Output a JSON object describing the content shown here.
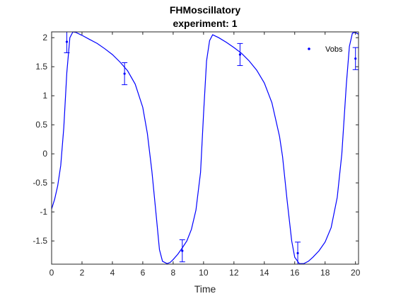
{
  "chart_data": {
    "type": "line",
    "title": "FHMoscillatory",
    "subtitle": "experiment: 1",
    "xlabel": "Time",
    "ylabel": "",
    "xlim": [
      0,
      20.2
    ],
    "ylim": [
      -1.9,
      2.1
    ],
    "xticks": [
      0,
      2,
      4,
      6,
      8,
      10,
      12,
      14,
      16,
      18,
      20
    ],
    "yticks": [
      -1.5,
      -1,
      -0.5,
      0,
      0.5,
      1,
      1.5,
      2
    ],
    "xtick_labels": [
      "0",
      "2",
      "4",
      "6",
      "8",
      "10",
      "12",
      "14",
      "16",
      "18",
      "20"
    ],
    "ytick_labels": [
      "-1.5",
      "-1",
      "-0.5",
      "0",
      "0.5",
      "1",
      "1.5",
      "2"
    ],
    "grid": false,
    "legend": {
      "position": "top-right",
      "entries": [
        "Vobs"
      ]
    },
    "series": [
      {
        "name": "",
        "kind": "line",
        "color": "#0000ff",
        "x": [
          0,
          0.2,
          0.4,
          0.6,
          0.8,
          1.0,
          1.2,
          1.4,
          1.6,
          2.0,
          2.5,
          3.0,
          3.5,
          4.0,
          4.5,
          5.0,
          5.5,
          6.0,
          6.3,
          6.6,
          6.9,
          7.1,
          7.3,
          7.6,
          7.8,
          8.0,
          8.3,
          8.6,
          8.9,
          9.2,
          9.5,
          9.8,
          10.0,
          10.2,
          10.4,
          10.6,
          11.0,
          11.5,
          12.0,
          12.5,
          13.0,
          13.5,
          14.0,
          14.5,
          15.0,
          15.2,
          15.5,
          15.8,
          16.0,
          16.3,
          16.6,
          16.9,
          17.2,
          17.6,
          18.0,
          18.4,
          18.8,
          19.1,
          19.4,
          19.6,
          19.8,
          20.0,
          20.2
        ],
        "y": [
          -0.95,
          -0.78,
          -0.55,
          -0.2,
          0.45,
          1.4,
          2.0,
          2.1,
          2.09,
          2.04,
          1.97,
          1.9,
          1.81,
          1.71,
          1.58,
          1.43,
          1.2,
          0.8,
          0.35,
          -0.3,
          -1.1,
          -1.65,
          -1.85,
          -1.89,
          -1.87,
          -1.82,
          -1.73,
          -1.62,
          -1.5,
          -1.3,
          -0.97,
          -0.32,
          0.7,
          1.6,
          1.95,
          2.05,
          2.0,
          1.92,
          1.83,
          1.73,
          1.6,
          1.44,
          1.22,
          0.88,
          0.3,
          -0.05,
          -0.8,
          -1.5,
          -1.78,
          -1.89,
          -1.89,
          -1.85,
          -1.78,
          -1.67,
          -1.52,
          -1.27,
          -0.75,
          0.0,
          1.2,
          1.85,
          2.08,
          2.09,
          2.06
        ]
      },
      {
        "name": "Vobs",
        "kind": "points_with_errorbars",
        "color": "#0000ff",
        "x": [
          1.0,
          4.8,
          8.6,
          12.4,
          16.2,
          20.0
        ],
        "y": [
          1.93,
          1.38,
          -1.67,
          1.71,
          -1.71,
          1.64
        ],
        "error": [
          0.19,
          0.19,
          0.19,
          0.19,
          0.19,
          0.19
        ]
      }
    ]
  }
}
